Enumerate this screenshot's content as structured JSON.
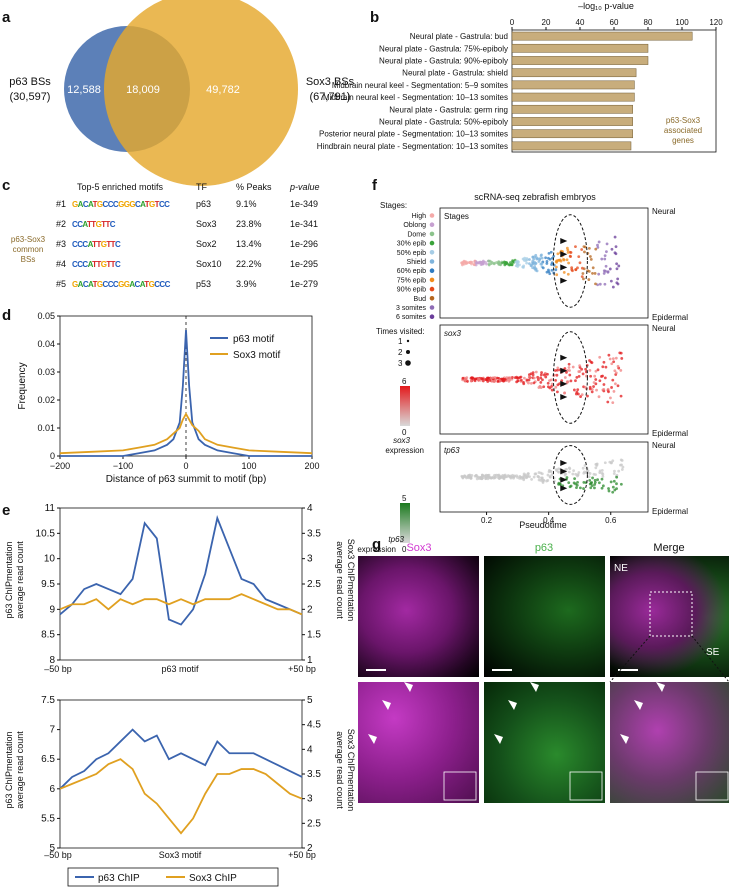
{
  "panel_labels": [
    "a",
    "b",
    "c",
    "d",
    "e",
    "f",
    "g"
  ],
  "panel_a": {
    "left_set": {
      "label": "p63 BSs",
      "count": "(30,597)",
      "color": "#4a72b0"
    },
    "right_set": {
      "label": "Sox3 BSs",
      "count": "(67,791)",
      "color": "#e5a82d"
    },
    "left_only": "12,588",
    "overlap": "18,009",
    "right_only": "49,782"
  },
  "panel_b": {
    "axis_title": "–log₁₀ p-value",
    "annotation": [
      "p63-Sox3",
      "associated",
      "genes"
    ],
    "bar_color": "#c8ad7c"
  },
  "panel_c": {
    "headers": [
      "Top-5 enriched motifs",
      "TF",
      "% Peaks",
      "p-value"
    ],
    "side_label": [
      "p63-Sox3",
      "common",
      "BSs"
    ],
    "rows": [
      {
        "rank": "#1",
        "logo": "GACATGCCCGGGCATGTCC",
        "tf": "p63",
        "peaks": "9.1%",
        "p": "1e-349"
      },
      {
        "rank": "#2",
        "logo": "CCATTGTTC",
        "tf": "Sox3",
        "peaks": "23.8%",
        "p": "1e-341"
      },
      {
        "rank": "#3",
        "logo": "CCCATTGTTC",
        "tf": "Sox2",
        "peaks": "13.4%",
        "p": "1e-296"
      },
      {
        "rank": "#4",
        "logo": "CCCATTGTTC",
        "tf": "Sox10",
        "peaks": "22.2%",
        "p": "1e-295"
      },
      {
        "rank": "#5",
        "logo": "GACATGCCCGGACATGCCC",
        "tf": "p53",
        "peaks": "3.9%",
        "p": "1e-279"
      }
    ]
  },
  "panel_d_legend": [
    "p63 motif",
    "Sox3 motif"
  ],
  "panel_e": {
    "left_label": [
      "p63 ChIPmentation",
      "average read count"
    ],
    "right_label": [
      "Sox3 ChIPmentation",
      "average read count"
    ],
    "top_x": [
      "–50 bp",
      "p63 motif",
      "+50 bp"
    ],
    "bottom_x": [
      "–50 bp",
      "Sox3 motif",
      "+50 bp"
    ],
    "legend": [
      "p63 ChIP",
      "Sox3 ChIP"
    ]
  },
  "panel_f": {
    "title": "scRNA-seq zebrafish embryos",
    "stages_title": "Stages:",
    "stages": [
      {
        "name": "High",
        "color": "#f4a9a8"
      },
      {
        "name": "Oblong",
        "color": "#c6a0d0"
      },
      {
        "name": "Dome",
        "color": "#8cc38c"
      },
      {
        "name": "30% epib",
        "color": "#3aa33a"
      },
      {
        "name": "50% epib",
        "color": "#a6cde6"
      },
      {
        "name": "Shield",
        "color": "#7fb4dc"
      },
      {
        "name": "60% epib",
        "color": "#2f7cc1"
      },
      {
        "name": "75% epib",
        "color": "#f28c1c"
      },
      {
        "name": "90% epib",
        "color": "#e64a19"
      },
      {
        "name": "Bud",
        "color": "#b5651d"
      },
      {
        "name": "3 somites",
        "color": "#8e6bb5"
      },
      {
        "name": "6 somites",
        "color": "#6a3d9a"
      }
    ],
    "times_title": "Times visited:",
    "times": [
      "1",
      "2",
      "3"
    ],
    "sub_labels": [
      "Stages",
      "sox3",
      "tp63"
    ],
    "neural": "Neural",
    "epidermal": "Epidermal",
    "sox3_expr": [
      "sox3",
      "expression"
    ],
    "tp63_expr": [
      "tp63",
      "expression"
    ],
    "sox3_scale": [
      "6",
      "0"
    ],
    "tp63_scale": [
      "5",
      "0"
    ],
    "xlabel": "Pseudotime",
    "xticks": [
      "0.2",
      "0.4",
      "0.6"
    ],
    "xlim": [
      0.05,
      0.72
    ]
  },
  "panel_g": {
    "titles": [
      "Sox3",
      "p63",
      "Merge"
    ],
    "title_colors": [
      "#d23ad2",
      "#49b04a",
      "#ffffff"
    ],
    "ne": "NE",
    "se": "SE"
  },
  "chart_data": [
    {
      "type": "bar",
      "panel": "b",
      "title": "",
      "xlabel": "–log10 p-value",
      "categories": [
        "Neural plate - Gastrula: bud",
        "Neural plate - Gastrula: 75%-epiboly",
        "Neural plate - Gastrula: 90%-epiboly",
        "Neural plate - Gastrula: shield",
        "Midbrain neural keel - Segmentation: 5–9 somites",
        "Midbrain neural keel - Segmentation: 10–13 somites",
        "Neural plate - Gastrula: germ ring",
        "Neural plate - Gastrula: 50%-epiboly",
        "Posterior neural plate - Segmentation: 10–13 somites",
        "Hindbrain neural plate - Segmentation: 10–13 somites"
      ],
      "values": [
        106,
        80,
        80,
        73,
        72,
        72,
        71,
        71,
        71,
        70
      ],
      "xlim": [
        0,
        120
      ],
      "xticks": [
        0,
        20,
        40,
        60,
        80,
        100,
        120
      ]
    },
    {
      "type": "line",
      "panel": "d",
      "xlabel": "Distance of p63 summit to motif (bp)",
      "ylabel": "Frequency",
      "xlim": [
        -200,
        200
      ],
      "ylim": [
        0,
        0.05
      ],
      "xticks": [
        -200,
        -100,
        0,
        100,
        200
      ],
      "yticks": [
        0,
        0.01,
        0.02,
        0.03,
        0.04,
        0.05
      ],
      "x": [
        -200,
        -150,
        -100,
        -75,
        -50,
        -30,
        -20,
        -10,
        -5,
        0,
        5,
        10,
        20,
        30,
        50,
        75,
        100,
        150,
        200
      ],
      "series": [
        {
          "name": "p63 motif",
          "color": "#3b64ae",
          "values": [
            0,
            0,
            0,
            0.001,
            0.002,
            0.004,
            0.006,
            0.012,
            0.025,
            0.045,
            0.025,
            0.012,
            0.006,
            0.004,
            0.002,
            0.001,
            0,
            0,
            0
          ]
        },
        {
          "name": "Sox3 motif",
          "color": "#e0a020",
          "values": [
            0.001,
            0.0015,
            0.002,
            0.003,
            0.004,
            0.006,
            0.008,
            0.01,
            0.013,
            0.015,
            0.013,
            0.011,
            0.009,
            0.006,
            0.004,
            0.003,
            0.002,
            0.0015,
            0.001
          ]
        }
      ]
    },
    {
      "type": "line",
      "panel": "e-top",
      "x": [
        -50,
        -45,
        -40,
        -35,
        -30,
        -25,
        -20,
        -15,
        -10,
        -5,
        0,
        5,
        10,
        15,
        20,
        25,
        30,
        35,
        40,
        45,
        50
      ],
      "ylim": [
        8,
        11
      ],
      "yticks": [
        8,
        8.5,
        9,
        9.5,
        10,
        10.5,
        11
      ],
      "y2lim": [
        1,
        4
      ],
      "y2ticks": [
        1,
        1.5,
        2,
        2.5,
        3,
        3.5,
        4
      ],
      "series": [
        {
          "name": "p63 ChIP",
          "color": "#3b64ae",
          "axis": "left",
          "values": [
            8.9,
            9.1,
            9.4,
            9.5,
            9.4,
            9.3,
            9.6,
            10.7,
            10.4,
            8.8,
            8.7,
            9.0,
            9.7,
            10.8,
            10.2,
            9.6,
            9.5,
            9.2,
            9.1,
            9.0,
            8.9
          ]
        },
        {
          "name": "Sox3 ChIP",
          "color": "#e0a020",
          "axis": "right",
          "values": [
            2.0,
            2.1,
            2.1,
            2.2,
            2.0,
            2.2,
            2.1,
            2.2,
            2.2,
            2.1,
            2.2,
            2.1,
            2.2,
            2.2,
            2.2,
            2.3,
            2.2,
            2.1,
            2.0,
            2.0,
            1.9
          ]
        }
      ]
    },
    {
      "type": "line",
      "panel": "e-bottom",
      "x": [
        -50,
        -45,
        -40,
        -35,
        -30,
        -25,
        -20,
        -15,
        -10,
        -5,
        0,
        5,
        10,
        15,
        20,
        25,
        30,
        35,
        40,
        45,
        50
      ],
      "ylim": [
        5,
        7.5
      ],
      "yticks": [
        5,
        5.5,
        6,
        6.5,
        7,
        7.5
      ],
      "y2lim": [
        2,
        5
      ],
      "y2ticks": [
        2,
        2.5,
        3,
        3.5,
        4,
        4.5,
        5
      ],
      "series": [
        {
          "name": "p63 ChIP",
          "color": "#3b64ae",
          "axis": "left",
          "values": [
            6.0,
            6.2,
            6.3,
            6.5,
            6.6,
            6.8,
            7.0,
            6.8,
            6.9,
            6.5,
            6.6,
            6.5,
            6.4,
            6.8,
            6.6,
            6.6,
            6.6,
            6.5,
            6.4,
            6.3,
            6.2
          ]
        },
        {
          "name": "Sox3 ChIP",
          "color": "#e0a020",
          "axis": "right",
          "values": [
            3.2,
            3.3,
            3.4,
            3.5,
            3.7,
            3.8,
            3.6,
            3.1,
            2.9,
            2.6,
            2.3,
            2.6,
            3.1,
            3.5,
            3.5,
            3.6,
            3.6,
            3.5,
            3.3,
            3.1,
            3.0
          ]
        }
      ]
    }
  ]
}
